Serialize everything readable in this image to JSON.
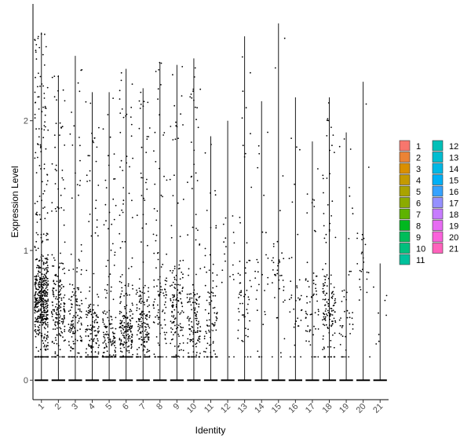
{
  "chart_data": {
    "type": "violin",
    "xlabel": "Identity",
    "ylabel": "Expression Level",
    "categories": [
      "1",
      "2",
      "3",
      "4",
      "5",
      "6",
      "7",
      "8",
      "9",
      "10",
      "11",
      "12",
      "13",
      "14",
      "15",
      "16",
      "17",
      "18",
      "19",
      "20",
      "21"
    ],
    "y_ticks": [
      "0",
      "1",
      "2"
    ],
    "ylim": [
      -0.15,
      2.9
    ],
    "grid": false,
    "legend_position": "right",
    "legend_columns": 2,
    "violin_max": [
      2.68,
      2.35,
      2.5,
      2.22,
      2.22,
      2.4,
      2.25,
      2.45,
      2.43,
      2.48,
      1.88,
      2.0,
      2.65,
      2.15,
      2.75,
      2.18,
      1.84,
      2.18,
      1.91,
      2.3,
      0.9
    ],
    "points_per_cluster": [
      520,
      210,
      140,
      160,
      150,
      230,
      180,
      110,
      150,
      150,
      90,
      18,
      60,
      30,
      40,
      35,
      60,
      140,
      45,
      25,
      8
    ],
    "zero_fraction": [
      0.35,
      0.5,
      0.55,
      0.5,
      0.5,
      0.5,
      0.5,
      0.55,
      0.5,
      0.5,
      0.6,
      0.7,
      0.6,
      0.7,
      0.7,
      0.7,
      0.6,
      0.55,
      0.65,
      0.75,
      0.75
    ],
    "cluster_mode": [
      0.6,
      0.55,
      0.5,
      0.35,
      0.3,
      0.4,
      0.4,
      0.6,
      0.55,
      0.45,
      0.5,
      0.9,
      0.6,
      0.8,
      0.8,
      0.6,
      0.6,
      0.55,
      0.5,
      0.9,
      0.5
    ],
    "colors": [
      "#F8766D",
      "#EB8335",
      "#DA8F00",
      "#C49A00",
      "#AAA300",
      "#8BAB00",
      "#5EB300",
      "#00B81F",
      "#00BC59",
      "#00BF7D",
      "#00C19C",
      "#00C0B8",
      "#00BDD0",
      "#00B8E5",
      "#00B0F6",
      "#35A2FF",
      "#9590FF",
      "#C77CFF",
      "#E76BF3",
      "#FA62DB",
      "#FF62BC"
    ]
  }
}
